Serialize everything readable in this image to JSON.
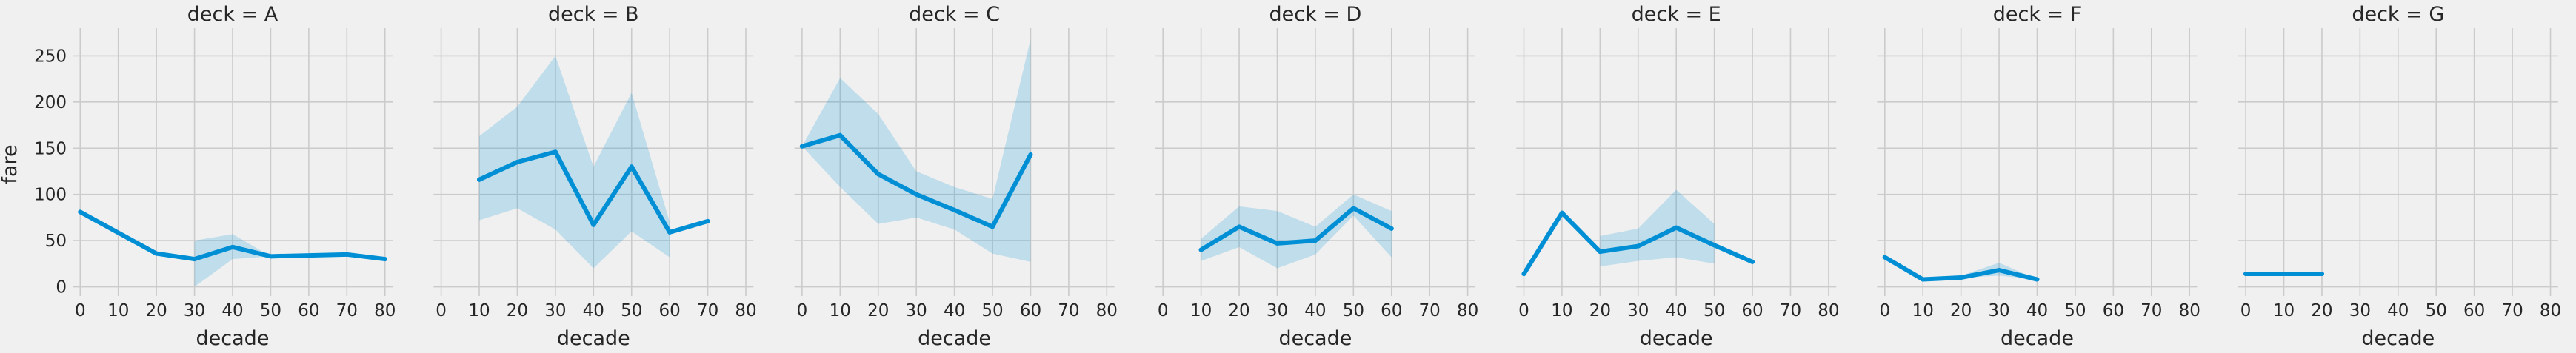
{
  "chart_data": {
    "type": "line",
    "xlabel": "decade",
    "ylabel": "fare",
    "xlim": [
      -2,
      82
    ],
    "ylim": [
      -10,
      280
    ],
    "xticks": [
      0,
      10,
      20,
      30,
      40,
      50,
      60,
      70,
      80
    ],
    "yticks": [
      0,
      50,
      100,
      150,
      200,
      250
    ],
    "grid": true,
    "colors": {
      "line": "#008fd5",
      "band": "#008fd5",
      "background": "#f0f0f0",
      "grid": "#cbcbcb",
      "text": "#262626"
    },
    "panels": [
      {
        "title": "deck = A",
        "points": [
          {
            "x": 0,
            "y": 81
          },
          {
            "x": 20,
            "y": 36
          },
          {
            "x": 30,
            "y": 30
          },
          {
            "x": 40,
            "y": 43
          },
          {
            "x": 50,
            "y": 33
          },
          {
            "x": 70,
            "y": 35
          },
          {
            "x": 80,
            "y": 30
          }
        ],
        "band": [
          {
            "x": 30,
            "lo": 0,
            "hi": 50
          },
          {
            "x": 40,
            "lo": 30,
            "hi": 57
          },
          {
            "x": 50,
            "lo": 33,
            "hi": 33
          }
        ]
      },
      {
        "title": "deck = B",
        "points": [
          {
            "x": 10,
            "y": 116
          },
          {
            "x": 20,
            "y": 135
          },
          {
            "x": 30,
            "y": 146
          },
          {
            "x": 40,
            "y": 67
          },
          {
            "x": 50,
            "y": 130
          },
          {
            "x": 60,
            "y": 59
          },
          {
            "x": 70,
            "y": 71
          }
        ],
        "band": [
          {
            "x": 10,
            "lo": 72,
            "hi": 163
          },
          {
            "x": 20,
            "lo": 85,
            "hi": 195
          },
          {
            "x": 30,
            "lo": 62,
            "hi": 250
          },
          {
            "x": 40,
            "lo": 20,
            "hi": 130
          },
          {
            "x": 50,
            "lo": 60,
            "hi": 210
          },
          {
            "x": 60,
            "lo": 32,
            "hi": 70
          }
        ]
      },
      {
        "title": "deck = C",
        "points": [
          {
            "x": 0,
            "y": 152
          },
          {
            "x": 10,
            "y": 164
          },
          {
            "x": 20,
            "y": 122
          },
          {
            "x": 30,
            "y": 100
          },
          {
            "x": 40,
            "y": 83
          },
          {
            "x": 50,
            "y": 65
          },
          {
            "x": 60,
            "y": 143
          }
        ],
        "band": [
          {
            "x": 0,
            "lo": 152,
            "hi": 152
          },
          {
            "x": 10,
            "lo": 108,
            "hi": 226
          },
          {
            "x": 20,
            "lo": 68,
            "hi": 187
          },
          {
            "x": 30,
            "lo": 75,
            "hi": 125
          },
          {
            "x": 40,
            "lo": 62,
            "hi": 108
          },
          {
            "x": 50,
            "lo": 36,
            "hi": 95
          },
          {
            "x": 60,
            "lo": 27,
            "hi": 268
          }
        ]
      },
      {
        "title": "deck = D",
        "points": [
          {
            "x": 10,
            "y": 40
          },
          {
            "x": 20,
            "y": 65
          },
          {
            "x": 30,
            "y": 47
          },
          {
            "x": 40,
            "y": 50
          },
          {
            "x": 50,
            "y": 85
          },
          {
            "x": 60,
            "y": 63
          }
        ],
        "band": [
          {
            "x": 10,
            "lo": 28,
            "hi": 52
          },
          {
            "x": 20,
            "lo": 43,
            "hi": 87
          },
          {
            "x": 30,
            "lo": 20,
            "hi": 82
          },
          {
            "x": 40,
            "lo": 35,
            "hi": 65
          },
          {
            "x": 50,
            "lo": 77,
            "hi": 100
          },
          {
            "x": 60,
            "lo": 32,
            "hi": 82
          }
        ]
      },
      {
        "title": "deck = E",
        "points": [
          {
            "x": 0,
            "y": 14
          },
          {
            "x": 10,
            "y": 80
          },
          {
            "x": 20,
            "y": 38
          },
          {
            "x": 30,
            "y": 44
          },
          {
            "x": 40,
            "y": 64
          },
          {
            "x": 50,
            "y": 45
          },
          {
            "x": 60,
            "y": 27
          }
        ],
        "band": [
          {
            "x": 20,
            "lo": 22,
            "hi": 55
          },
          {
            "x": 30,
            "lo": 28,
            "hi": 63
          },
          {
            "x": 40,
            "lo": 32,
            "hi": 105
          },
          {
            "x": 50,
            "lo": 25,
            "hi": 68
          }
        ]
      },
      {
        "title": "deck = F",
        "points": [
          {
            "x": 0,
            "y": 32
          },
          {
            "x": 10,
            "y": 8
          },
          {
            "x": 20,
            "y": 10
          },
          {
            "x": 30,
            "y": 18
          },
          {
            "x": 40,
            "y": 8
          }
        ],
        "band": [
          {
            "x": 20,
            "lo": 10,
            "hi": 12
          },
          {
            "x": 30,
            "lo": 12,
            "hi": 26
          },
          {
            "x": 40,
            "lo": 8,
            "hi": 8
          }
        ]
      },
      {
        "title": "deck = G",
        "points": [
          {
            "x": 0,
            "y": 14
          },
          {
            "x": 10,
            "y": 14
          },
          {
            "x": 20,
            "y": 14
          }
        ],
        "band": [
          {
            "x": 0,
            "lo": 12,
            "hi": 16
          },
          {
            "x": 10,
            "lo": 12,
            "hi": 16
          },
          {
            "x": 20,
            "lo": 12,
            "hi": 16
          }
        ]
      }
    ]
  }
}
